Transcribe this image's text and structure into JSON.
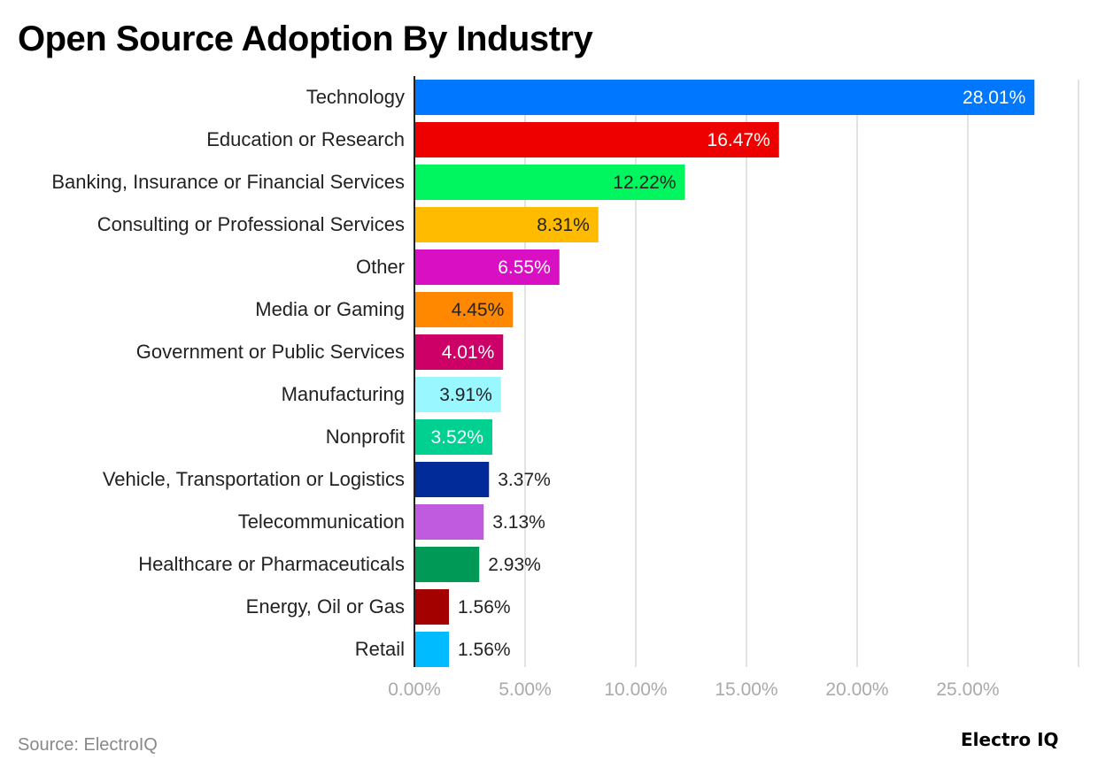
{
  "title": "Open Source Adoption By Industry",
  "source": "Source: ElectroIQ",
  "logo_text": "Electro IQ",
  "chart_data": {
    "type": "bar",
    "orientation": "horizontal",
    "title": "Open Source Adoption By Industry",
    "xlabel": "",
    "ylabel": "",
    "xlim": [
      0,
      30
    ],
    "grid": true,
    "x_ticks": [
      "0.00%",
      "5.00%",
      "10.00%",
      "15.00%",
      "20.00%",
      "25.00%"
    ],
    "categories": [
      "Technology",
      "Education or Research",
      "Banking, Insurance or Financial Services",
      "Consulting or Professional Services",
      "Other",
      "Media or Gaming",
      "Government or Public Services",
      "Manufacturing",
      "Nonprofit",
      "Vehicle, Transportation or Logistics",
      "Telecommunication",
      "Healthcare or Pharmaceuticals",
      "Energy, Oil or Gas",
      "Retail"
    ],
    "values": [
      28.01,
      16.47,
      12.22,
      8.31,
      6.55,
      4.45,
      4.01,
      3.91,
      3.52,
      3.37,
      3.13,
      2.93,
      1.56,
      1.56
    ],
    "data_labels": [
      "28.01%",
      "16.47%",
      "12.22%",
      "8.31%",
      "6.55%",
      "4.45%",
      "4.01%",
      "3.91%",
      "3.52%",
      "3.37%",
      "3.13%",
      "2.93%",
      "1.56%",
      "1.56%"
    ],
    "colors": [
      "#0077ff",
      "#ee0000",
      "#00f65e",
      "#ffbb00",
      "#d90fc3",
      "#ff8800",
      "#cc0066",
      "#99f8ff",
      "#00d090",
      "#002b99",
      "#c05ade",
      "#009955",
      "#a30000",
      "#00bbff"
    ]
  }
}
